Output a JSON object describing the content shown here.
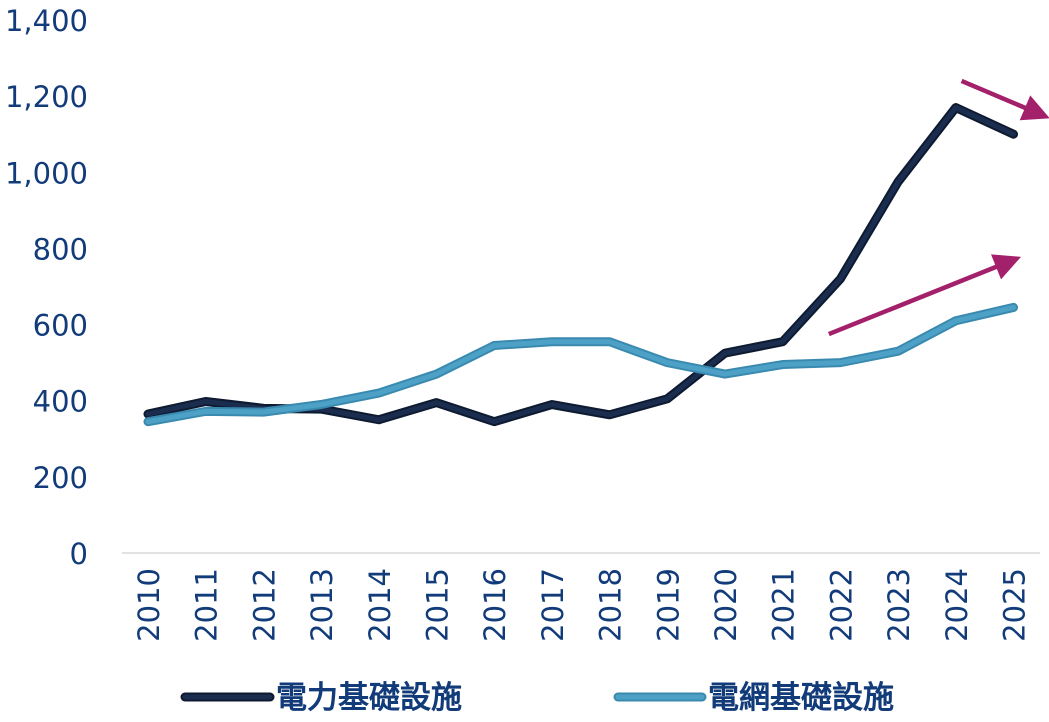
{
  "chart_data": {
    "type": "line",
    "x": [
      "2010",
      "2011",
      "2012",
      "2013",
      "2014",
      "2015",
      "2016",
      "2017",
      "2018",
      "2019",
      "2020",
      "2021",
      "2022",
      "2023",
      "2024",
      "2025"
    ],
    "ylim": [
      0,
      1400
    ],
    "y_ticks": [
      0,
      200,
      400,
      600,
      800,
      1000,
      1200,
      1400
    ],
    "y_tick_labels": [
      "0",
      "200",
      "400",
      "600",
      "800",
      "1,000",
      "1,200",
      "1,400"
    ],
    "grid": false,
    "legend_position": "bottom",
    "series": [
      {
        "name": "電力基礎設施",
        "color": "#1a2d4f",
        "values": [
          365,
          398,
          380,
          378,
          350,
          395,
          345,
          390,
          363,
          405,
          525,
          555,
          720,
          975,
          1170,
          1100
        ]
      },
      {
        "name": "電網基礎設施",
        "color": "#4ea1c6",
        "values": [
          345,
          372,
          370,
          390,
          420,
          470,
          545,
          555,
          555,
          500,
          470,
          495,
          500,
          530,
          610,
          645
        ]
      }
    ],
    "annotations": [
      {
        "kind": "arrow",
        "meaning": "declining trend",
        "color": "#a3206b",
        "from": {
          "x": 2024.1,
          "y": 1240
        },
        "to": {
          "x": 2025.5,
          "y": 1150
        }
      },
      {
        "kind": "arrow",
        "meaning": "rising trend",
        "color": "#a3206b",
        "from": {
          "x": 2021.8,
          "y": 575
        },
        "to": {
          "x": 2025.0,
          "y": 770
        }
      }
    ]
  },
  "colors": {
    "axis_text": "#123b7a",
    "axis_line": "#d9d9d9"
  }
}
